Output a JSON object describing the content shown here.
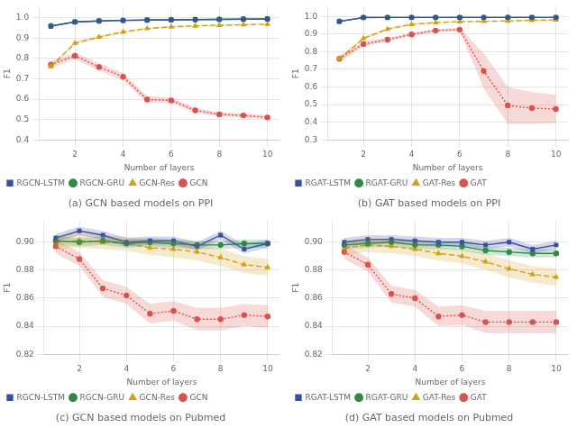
{
  "chart_data": [
    {
      "type": "line",
      "title": "(a) GCN based models on PPI",
      "x_label": "Number of layers",
      "y_label": "F1",
      "x": [
        1,
        2,
        3,
        4,
        5,
        6,
        7,
        8,
        9,
        10
      ],
      "xlim": [
        0.5,
        10.5
      ],
      "xticks": [
        2,
        4,
        6,
        8,
        10
      ],
      "ylim": [
        0.4,
        1.05
      ],
      "yticks": [
        0.4,
        0.5,
        0.6,
        0.7,
        0.8,
        0.9,
        {
          "value": 1.0,
          "label": "1.0"
        }
      ],
      "grid": true,
      "legend": "lower left",
      "series": [
        {
          "name": "RGCN-LSTM",
          "color": "#3a4fa0",
          "marker": "square",
          "line_style": "solid",
          "values": [
            0.958,
            0.979,
            0.984,
            0.987,
            0.989,
            0.99,
            0.991,
            0.992,
            0.993,
            0.993
          ],
          "std": [
            0.002,
            0.002,
            0.002,
            0.002,
            0.001,
            0.001,
            0.001,
            0.001,
            0.001,
            0.001
          ]
        },
        {
          "name": "RGCN-GRU",
          "color": "#2d8b48",
          "marker": "circle",
          "line_style": "solid",
          "values": [
            0.96,
            0.98,
            0.984,
            0.987,
            0.989,
            0.99,
            0.991,
            0.992,
            0.993,
            0.994
          ],
          "std": [
            0.002,
            0.002,
            0.002,
            0.002,
            0.001,
            0.001,
            0.001,
            0.001,
            0.001,
            0.001
          ]
        },
        {
          "name": "GCN-Res",
          "color": "#d4a017",
          "marker": "triangle",
          "line_style": "dashed",
          "values": [
            0.76,
            0.875,
            0.905,
            0.93,
            0.947,
            0.955,
            0.96,
            0.963,
            0.966,
            0.968
          ],
          "std": [
            0.008,
            0.008,
            0.008,
            0.006,
            0.006,
            0.005,
            0.005,
            0.004,
            0.004,
            0.004
          ]
        },
        {
          "name": "GCN",
          "color": "#d9534f",
          "marker": "circle",
          "line_style": "dotted",
          "values": [
            0.77,
            0.813,
            0.758,
            0.71,
            0.598,
            0.594,
            0.545,
            0.525,
            0.52,
            0.51
          ],
          "std": [
            0.018,
            0.016,
            0.018,
            0.018,
            0.016,
            0.014,
            0.012,
            0.01,
            0.01,
            0.01
          ]
        }
      ]
    },
    {
      "type": "line",
      "title": "(b) GAT based models on PPI",
      "x_label": "Number of layers",
      "y_label": "F1",
      "x": [
        1,
        2,
        3,
        4,
        5,
        6,
        7,
        8,
        9,
        10
      ],
      "xlim": [
        0.5,
        10.5
      ],
      "xticks": [
        2,
        4,
        6,
        8,
        10
      ],
      "ylim": [
        0.3,
        1.05
      ],
      "yticks": [
        0.3,
        0.4,
        0.5,
        0.6,
        0.7,
        0.8,
        0.9,
        {
          "value": 1.0,
          "label": "1.0"
        }
      ],
      "grid": true,
      "legend": "lower left",
      "series": [
        {
          "name": "RGAT-LSTM",
          "color": "#3a4fa0",
          "marker": "square",
          "line_style": "solid",
          "values": [
            0.971,
            0.993,
            0.994,
            0.994,
            0.994,
            0.994,
            0.994,
            0.994,
            0.994,
            0.994
          ],
          "std": [
            0.002,
            0.001,
            0.001,
            0.001,
            0.001,
            0.001,
            0.001,
            0.001,
            0.001,
            0.001
          ]
        },
        {
          "name": "RGAT-GRU",
          "color": "#2d8b48",
          "marker": "circle",
          "line_style": "solid",
          "values": [
            0.972,
            0.994,
            0.994,
            0.994,
            0.994,
            0.994,
            0.994,
            0.994,
            0.994,
            0.994
          ],
          "std": [
            0.002,
            0.001,
            0.001,
            0.001,
            0.001,
            0.001,
            0.001,
            0.001,
            0.001,
            0.001
          ]
        },
        {
          "name": "GAT-Res",
          "color": "#d4a017",
          "marker": "triangle",
          "line_style": "dashed",
          "values": [
            0.76,
            0.875,
            0.928,
            0.955,
            0.965,
            0.97,
            0.972,
            0.974,
            0.978,
            0.98
          ],
          "std": [
            0.008,
            0.008,
            0.006,
            0.005,
            0.005,
            0.004,
            0.004,
            0.004,
            0.004,
            0.003
          ]
        },
        {
          "name": "GAT",
          "color": "#d9534f",
          "marker": "circle",
          "line_style": "dotted",
          "values": [
            0.76,
            0.843,
            0.868,
            0.898,
            0.92,
            0.925,
            0.69,
            0.495,
            0.48,
            0.475
          ],
          "std": [
            0.018,
            0.015,
            0.012,
            0.01,
            0.01,
            0.01,
            0.1,
            0.105,
            0.09,
            0.08
          ]
        }
      ]
    },
    {
      "type": "line",
      "title": "(c) GCN based models on Pubmed",
      "x_label": "Number of layers",
      "y_label": "F1",
      "x": [
        1,
        2,
        3,
        4,
        5,
        6,
        7,
        8,
        9,
        10
      ],
      "xlim": [
        0.5,
        10.5
      ],
      "xticks": [
        2,
        4,
        6,
        8,
        10
      ],
      "ylim": [
        0.82,
        0.915
      ],
      "yticks": [
        0.82,
        0.84,
        0.86,
        0.88,
        {
          "value": 0.9,
          "label": "0.90"
        }
      ],
      "grid": true,
      "legend": "lower left",
      "series": [
        {
          "name": "RGCN-LSTM",
          "color": "#3a4fa0",
          "marker": "square",
          "line_style": "solid",
          "values": [
            0.903,
            0.908,
            0.905,
            0.9,
            0.901,
            0.901,
            0.897,
            0.905,
            0.895,
            0.899
          ],
          "std": [
            0.003,
            0.003,
            0.003,
            0.003,
            0.003,
            0.003,
            0.003,
            0.003,
            0.003,
            0.003
          ]
        },
        {
          "name": "RGCN-GRU",
          "color": "#2d8b48",
          "marker": "circle",
          "line_style": "solid",
          "values": [
            0.901,
            0.9,
            0.901,
            0.899,
            0.9,
            0.899,
            0.898,
            0.898,
            0.899,
            0.899
          ],
          "std": [
            0.003,
            0.003,
            0.003,
            0.003,
            0.003,
            0.003,
            0.003,
            0.003,
            0.003,
            0.003
          ]
        },
        {
          "name": "GCN-Res",
          "color": "#d4a017",
          "marker": "triangle",
          "line_style": "dashed",
          "values": [
            0.9,
            0.901,
            0.9,
            0.899,
            0.896,
            0.895,
            0.893,
            0.889,
            0.884,
            0.882
          ],
          "std": [
            0.005,
            0.005,
            0.005,
            0.005,
            0.005,
            0.006,
            0.006,
            0.006,
            0.006,
            0.006
          ]
        },
        {
          "name": "GCN",
          "color": "#d9534f",
          "marker": "circle",
          "line_style": "dotted",
          "values": [
            0.897,
            0.888,
            0.867,
            0.862,
            0.849,
            0.851,
            0.845,
            0.845,
            0.848,
            0.847
          ],
          "std": [
            0.005,
            0.005,
            0.006,
            0.006,
            0.007,
            0.007,
            0.008,
            0.008,
            0.008,
            0.008
          ]
        }
      ]
    },
    {
      "type": "line",
      "title": "(d) GAT based models on Pubmed",
      "x_label": "Number of layers",
      "y_label": "F1",
      "x": [
        1,
        2,
        3,
        4,
        5,
        6,
        7,
        8,
        9,
        10
      ],
      "xlim": [
        0.5,
        10.5
      ],
      "xticks": [
        2,
        4,
        6,
        8,
        10
      ],
      "ylim": [
        0.82,
        0.915
      ],
      "yticks": [
        0.82,
        0.84,
        0.86,
        0.88,
        {
          "value": 0.9,
          "label": "0.90"
        }
      ],
      "grid": true,
      "legend": "lower left",
      "series": [
        {
          "name": "RGAT-LSTM",
          "color": "#3a4fa0",
          "marker": "square",
          "line_style": "solid",
          "values": [
            0.9,
            0.902,
            0.902,
            0.901,
            0.9,
            0.9,
            0.898,
            0.9,
            0.895,
            0.898
          ],
          "std": [
            0.003,
            0.003,
            0.003,
            0.003,
            0.003,
            0.003,
            0.003,
            0.003,
            0.003,
            0.003
          ]
        },
        {
          "name": "RGAT-GRU",
          "color": "#2d8b48",
          "marker": "circle",
          "line_style": "solid",
          "values": [
            0.898,
            0.899,
            0.9,
            0.898,
            0.898,
            0.897,
            0.894,
            0.893,
            0.892,
            0.892
          ],
          "std": [
            0.003,
            0.003,
            0.003,
            0.003,
            0.003,
            0.003,
            0.003,
            0.003,
            0.003,
            0.003
          ]
        },
        {
          "name": "GAT-Res",
          "color": "#d4a017",
          "marker": "triangle",
          "line_style": "dashed",
          "values": [
            0.896,
            0.898,
            0.897,
            0.895,
            0.892,
            0.89,
            0.886,
            0.881,
            0.877,
            0.875
          ],
          "std": [
            0.005,
            0.005,
            0.005,
            0.005,
            0.005,
            0.005,
            0.006,
            0.006,
            0.006,
            0.006
          ]
        },
        {
          "name": "GAT",
          "color": "#d9534f",
          "marker": "circle",
          "line_style": "dotted",
          "values": [
            0.893,
            0.884,
            0.863,
            0.86,
            0.847,
            0.848,
            0.843,
            0.843,
            0.843,
            0.843
          ],
          "std": [
            0.005,
            0.005,
            0.006,
            0.006,
            0.007,
            0.007,
            0.008,
            0.008,
            0.008,
            0.008
          ]
        }
      ]
    }
  ]
}
